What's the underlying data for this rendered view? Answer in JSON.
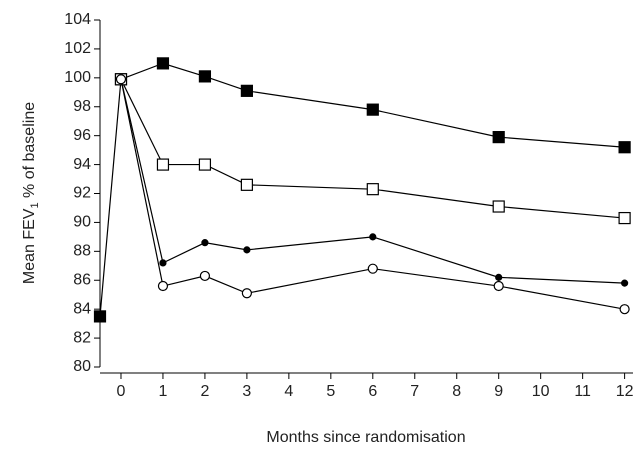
{
  "chart_data": {
    "type": "line",
    "xlabel": "Months since randomisation",
    "ylabel_parts": [
      "Mean FEV",
      "1",
      " % of baseline"
    ],
    "xlim": [
      -0.5,
      12.2
    ],
    "xticks": [
      0,
      1,
      2,
      3,
      4,
      5,
      6,
      7,
      8,
      9,
      10,
      11,
      12
    ],
    "ylim": [
      80,
      104
    ],
    "yticks": [
      80,
      82,
      84,
      86,
      88,
      90,
      92,
      94,
      96,
      98,
      100,
      102,
      104
    ],
    "series": [
      {
        "color": "#000000",
        "marker": "square",
        "marker_fill": "#000000",
        "x": [
          -0.5,
          0,
          1,
          2,
          3,
          6,
          9,
          12
        ],
        "values": [
          83.5,
          99.9,
          101,
          100.1,
          99.1,
          97.8,
          95.9,
          95.2
        ]
      },
      {
        "color": "#000000",
        "marker": "square",
        "marker_fill": "#ffffff",
        "x": [
          0,
          1,
          2,
          3,
          6,
          9,
          12
        ],
        "values": [
          99.9,
          94,
          94,
          92.6,
          92.3,
          91.1,
          90.3
        ]
      },
      {
        "color": "#000000",
        "marker": "small-circle",
        "marker_fill": "#000000",
        "x": [
          0,
          1,
          2,
          3,
          6,
          9,
          12
        ],
        "values": [
          99.9,
          87.2,
          88.6,
          88.1,
          89,
          86.2,
          85.8
        ]
      },
      {
        "color": "#000000",
        "marker": "circle",
        "marker_fill": "#ffffff",
        "x": [
          0,
          1,
          2,
          3,
          6,
          9,
          12
        ],
        "values": [
          99.9,
          85.6,
          86.3,
          85.1,
          86.8,
          85.6,
          84
        ]
      }
    ]
  }
}
